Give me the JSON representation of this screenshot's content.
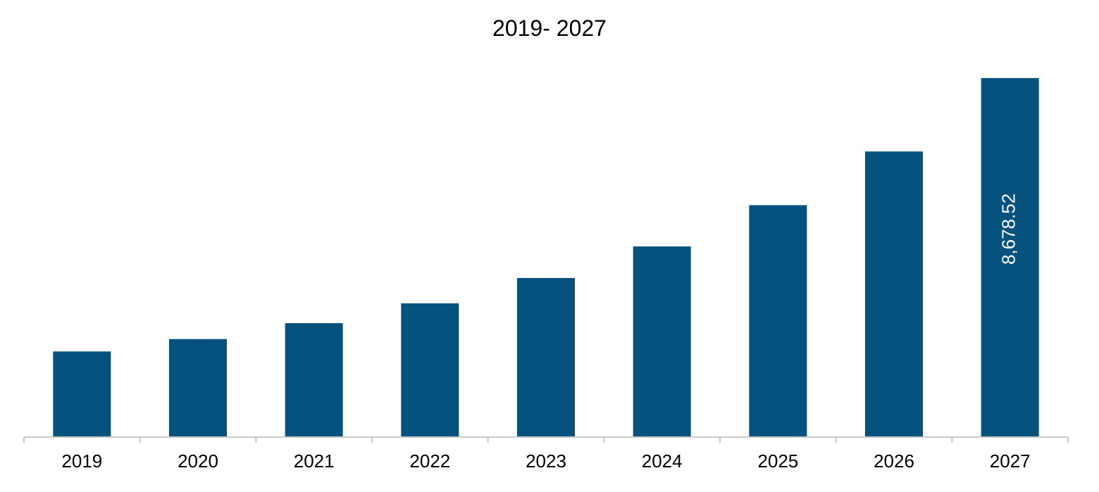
{
  "chart_data": {
    "type": "bar",
    "title": "2019- 2027",
    "categories": [
      "2019",
      "2020",
      "2021",
      "2022",
      "2023",
      "2024",
      "2025",
      "2026",
      "2027"
    ],
    "series": [
      {
        "values": [
          2057,
          2357,
          2742,
          3222,
          3836,
          4600,
          5600,
          6900,
          8678.52
        ]
      }
    ],
    "data_labels": [
      "",
      "",
      "",
      "",
      "",
      "",
      "",
      "",
      "8,678.52"
    ],
    "ylim": [
      0,
      9000
    ],
    "bar_color": "#05527f",
    "axis_color": "#c8c8c8",
    "label_color": "#ffffff",
    "grid": false,
    "legend": "none"
  }
}
